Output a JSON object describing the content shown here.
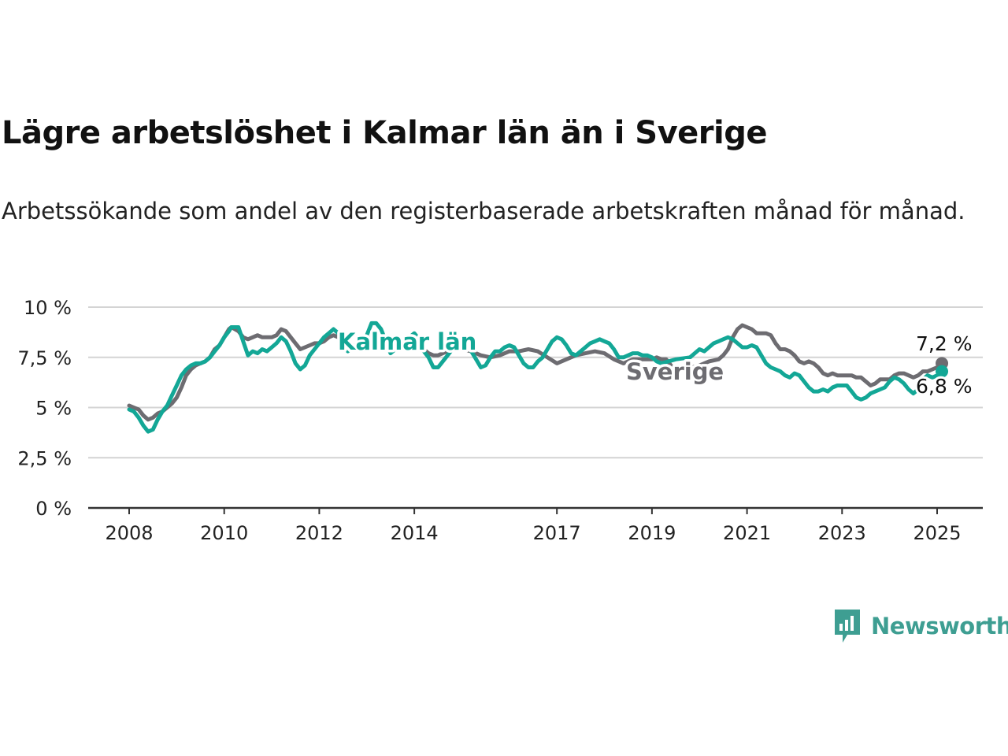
{
  "title": "Lägre arbetslöshet i Kalmar län än i Sverige",
  "subtitle": "Arbetssökande som andel av den registerbaserade arbetskraften månad för månad.",
  "brand": {
    "name": "Newsworthy",
    "icon": "newsworthy-chart-icon",
    "color": "#3e9e92"
  },
  "chart_data": {
    "type": "line",
    "title": "Lägre arbetslöshet i Kalmar län än i Sverige",
    "xlabel": "",
    "ylabel": "",
    "x_ticks": [
      "2008",
      "2010",
      "2012",
      "2014",
      "2017",
      "2019",
      "2021",
      "2023",
      "2025"
    ],
    "x_tick_values": [
      2008,
      2010,
      2012,
      2014,
      2017,
      2019,
      2021,
      2023,
      2025
    ],
    "y_ticks": [
      "0 %",
      "2,5 %",
      "5 %",
      "7,5 %",
      "10 %"
    ],
    "y_tick_values": [
      0,
      2.5,
      5,
      7.5,
      10
    ],
    "xlim": [
      2008,
      2025.1
    ],
    "ylim": [
      0,
      10
    ],
    "grid": "horizontal",
    "series": [
      {
        "name": "Sverige",
        "color": "#6d6c71",
        "end_label": "7,2 %",
        "points": [
          [
            2008.0,
            5.1
          ],
          [
            2008.1,
            5.0
          ],
          [
            2008.2,
            4.9
          ],
          [
            2008.3,
            4.6
          ],
          [
            2008.4,
            4.4
          ],
          [
            2008.5,
            4.5
          ],
          [
            2008.6,
            4.7
          ],
          [
            2008.7,
            4.8
          ],
          [
            2008.8,
            5.0
          ],
          [
            2008.9,
            5.2
          ],
          [
            2009.0,
            5.5
          ],
          [
            2009.1,
            6.0
          ],
          [
            2009.2,
            6.6
          ],
          [
            2009.3,
            6.9
          ],
          [
            2009.4,
            7.1
          ],
          [
            2009.5,
            7.2
          ],
          [
            2009.6,
            7.3
          ],
          [
            2009.7,
            7.5
          ],
          [
            2009.8,
            7.9
          ],
          [
            2009.9,
            8.1
          ],
          [
            2010.0,
            8.5
          ],
          [
            2010.1,
            8.9
          ],
          [
            2010.15,
            9.0
          ],
          [
            2010.3,
            8.8
          ],
          [
            2010.4,
            8.5
          ],
          [
            2010.5,
            8.4
          ],
          [
            2010.6,
            8.5
          ],
          [
            2010.7,
            8.6
          ],
          [
            2010.8,
            8.5
          ],
          [
            2010.9,
            8.5
          ],
          [
            2011.0,
            8.5
          ],
          [
            2011.1,
            8.6
          ],
          [
            2011.2,
            8.9
          ],
          [
            2011.3,
            8.8
          ],
          [
            2011.4,
            8.5
          ],
          [
            2011.5,
            8.2
          ],
          [
            2011.6,
            7.9
          ],
          [
            2011.7,
            8.0
          ],
          [
            2011.8,
            8.1
          ],
          [
            2011.9,
            8.2
          ],
          [
            2012.0,
            8.2
          ],
          [
            2012.1,
            8.3
          ],
          [
            2012.2,
            8.5
          ],
          [
            2012.3,
            8.6
          ],
          [
            2012.4,
            8.5
          ],
          [
            2012.5,
            8.3
          ],
          [
            2012.6,
            8.1
          ],
          [
            2012.7,
            8.0
          ],
          [
            2012.8,
            8.0
          ],
          [
            2012.9,
            8.1
          ],
          [
            2013.0,
            8.3
          ],
          [
            2013.1,
            8.5
          ],
          [
            2013.2,
            8.6
          ],
          [
            2013.3,
            8.5
          ],
          [
            2013.4,
            8.3
          ],
          [
            2013.5,
            8.1
          ],
          [
            2013.6,
            8.0
          ],
          [
            2013.7,
            8.1
          ],
          [
            2013.8,
            8.3
          ],
          [
            2013.9,
            8.5
          ],
          [
            2014.0,
            8.4
          ],
          [
            2014.1,
            8.2
          ],
          [
            2014.2,
            7.9
          ],
          [
            2014.3,
            7.7
          ],
          [
            2014.4,
            7.6
          ],
          [
            2014.5,
            7.6
          ],
          [
            2014.6,
            7.7
          ],
          [
            2014.7,
            7.8
          ],
          [
            2014.8,
            7.9
          ],
          [
            2014.9,
            7.9
          ],
          [
            2015.0,
            7.9
          ],
          [
            2015.2,
            7.8
          ],
          [
            2015.4,
            7.6
          ],
          [
            2015.6,
            7.5
          ],
          [
            2015.8,
            7.6
          ],
          [
            2016.0,
            7.8
          ],
          [
            2016.2,
            7.8
          ],
          [
            2016.4,
            7.9
          ],
          [
            2016.6,
            7.8
          ],
          [
            2016.8,
            7.5
          ],
          [
            2017.0,
            7.2
          ],
          [
            2017.2,
            7.4
          ],
          [
            2017.4,
            7.6
          ],
          [
            2017.6,
            7.7
          ],
          [
            2017.8,
            7.8
          ],
          [
            2018.0,
            7.7
          ],
          [
            2018.2,
            7.4
          ],
          [
            2018.4,
            7.2
          ],
          [
            2018.6,
            7.4
          ],
          [
            2018.8,
            7.4
          ],
          [
            2019.0,
            7.4
          ],
          [
            2019.1,
            7.5
          ],
          [
            2019.2,
            7.4
          ],
          [
            2019.3,
            7.4
          ],
          [
            2019.4,
            7.1
          ],
          [
            2019.5,
            6.8
          ],
          [
            2020.0,
            7.1
          ],
          [
            2020.2,
            7.3
          ],
          [
            2020.4,
            7.4
          ],
          [
            2020.5,
            7.6
          ],
          [
            2020.6,
            7.9
          ],
          [
            2020.7,
            8.5
          ],
          [
            2020.8,
            8.9
          ],
          [
            2020.9,
            9.1
          ],
          [
            2021.0,
            9.0
          ],
          [
            2021.1,
            8.9
          ],
          [
            2021.2,
            8.7
          ],
          [
            2021.3,
            8.7
          ],
          [
            2021.4,
            8.7
          ],
          [
            2021.5,
            8.6
          ],
          [
            2021.6,
            8.2
          ],
          [
            2021.7,
            7.9
          ],
          [
            2021.8,
            7.9
          ],
          [
            2021.9,
            7.8
          ],
          [
            2022.0,
            7.6
          ],
          [
            2022.1,
            7.3
          ],
          [
            2022.2,
            7.2
          ],
          [
            2022.3,
            7.3
          ],
          [
            2022.4,
            7.2
          ],
          [
            2022.5,
            7.0
          ],
          [
            2022.6,
            6.7
          ],
          [
            2022.7,
            6.6
          ],
          [
            2022.8,
            6.7
          ],
          [
            2022.9,
            6.6
          ],
          [
            2023.0,
            6.6
          ],
          [
            2023.2,
            6.6
          ],
          [
            2023.3,
            6.5
          ],
          [
            2023.4,
            6.5
          ],
          [
            2023.5,
            6.3
          ],
          [
            2023.6,
            6.1
          ],
          [
            2023.7,
            6.2
          ],
          [
            2023.8,
            6.4
          ],
          [
            2023.9,
            6.4
          ],
          [
            2024.0,
            6.4
          ],
          [
            2024.1,
            6.6
          ],
          [
            2024.2,
            6.7
          ],
          [
            2024.3,
            6.7
          ],
          [
            2024.4,
            6.6
          ],
          [
            2024.5,
            6.5
          ],
          [
            2024.6,
            6.6
          ],
          [
            2024.7,
            6.8
          ],
          [
            2024.8,
            6.8
          ],
          [
            2024.9,
            6.9
          ],
          [
            2025.0,
            7.0
          ],
          [
            2025.1,
            7.2
          ]
        ]
      },
      {
        "name": "Kalmar län",
        "color": "#13a796",
        "end_label": "6,8 %",
        "points": [
          [
            2008.0,
            4.9
          ],
          [
            2008.1,
            4.8
          ],
          [
            2008.2,
            4.5
          ],
          [
            2008.3,
            4.1
          ],
          [
            2008.4,
            3.8
          ],
          [
            2008.5,
            3.9
          ],
          [
            2008.6,
            4.4
          ],
          [
            2008.7,
            4.8
          ],
          [
            2008.8,
            5.1
          ],
          [
            2008.9,
            5.6
          ],
          [
            2009.0,
            6.1
          ],
          [
            2009.1,
            6.6
          ],
          [
            2009.2,
            6.9
          ],
          [
            2009.3,
            7.1
          ],
          [
            2009.4,
            7.2
          ],
          [
            2009.5,
            7.2
          ],
          [
            2009.6,
            7.3
          ],
          [
            2009.7,
            7.5
          ],
          [
            2009.8,
            7.8
          ],
          [
            2009.9,
            8.1
          ],
          [
            2010.0,
            8.5
          ],
          [
            2010.1,
            8.8
          ],
          [
            2010.15,
            9.0
          ],
          [
            2010.3,
            9.0
          ],
          [
            2010.4,
            8.3
          ],
          [
            2010.5,
            7.6
          ],
          [
            2010.6,
            7.8
          ],
          [
            2010.7,
            7.7
          ],
          [
            2010.8,
            7.9
          ],
          [
            2010.9,
            7.8
          ],
          [
            2011.0,
            8.0
          ],
          [
            2011.1,
            8.2
          ],
          [
            2011.2,
            8.5
          ],
          [
            2011.3,
            8.3
          ],
          [
            2011.4,
            7.8
          ],
          [
            2011.5,
            7.2
          ],
          [
            2011.6,
            6.9
          ],
          [
            2011.7,
            7.1
          ],
          [
            2011.8,
            7.6
          ],
          [
            2011.9,
            7.9
          ],
          [
            2012.0,
            8.2
          ],
          [
            2012.1,
            8.5
          ],
          [
            2012.2,
            8.7
          ],
          [
            2012.3,
            8.9
          ],
          [
            2012.4,
            8.7
          ],
          [
            2012.5,
            8.3
          ],
          [
            2012.6,
            7.8
          ],
          [
            2013.0,
            8.6
          ],
          [
            2013.1,
            9.2
          ],
          [
            2013.2,
            9.2
          ],
          [
            2013.3,
            8.9
          ],
          [
            2013.5,
            7.7
          ],
          [
            2014.0,
            8.7
          ],
          [
            2014.1,
            8.4
          ],
          [
            2014.2,
            7.8
          ],
          [
            2014.3,
            7.5
          ],
          [
            2014.4,
            7.0
          ],
          [
            2014.5,
            7.0
          ],
          [
            2014.6,
            7.3
          ],
          [
            2014.7,
            7.6
          ],
          [
            2014.8,
            7.9
          ],
          [
            2014.9,
            8.1
          ],
          [
            2015.0,
            8.2
          ],
          [
            2015.1,
            8.1
          ],
          [
            2015.2,
            7.8
          ],
          [
            2015.3,
            7.4
          ],
          [
            2015.4,
            7.0
          ],
          [
            2015.5,
            7.1
          ],
          [
            2015.6,
            7.5
          ],
          [
            2015.7,
            7.8
          ],
          [
            2015.8,
            7.8
          ],
          [
            2015.9,
            8.0
          ],
          [
            2016.0,
            8.1
          ],
          [
            2016.1,
            8.0
          ],
          [
            2016.2,
            7.6
          ],
          [
            2016.3,
            7.2
          ],
          [
            2016.4,
            7.0
          ],
          [
            2016.5,
            7.0
          ],
          [
            2016.6,
            7.3
          ],
          [
            2016.7,
            7.5
          ],
          [
            2016.8,
            7.9
          ],
          [
            2016.9,
            8.3
          ],
          [
            2017.0,
            8.5
          ],
          [
            2017.1,
            8.4
          ],
          [
            2017.2,
            8.1
          ],
          [
            2017.3,
            7.7
          ],
          [
            2017.4,
            7.6
          ],
          [
            2017.5,
            7.8
          ],
          [
            2017.6,
            8.0
          ],
          [
            2017.7,
            8.2
          ],
          [
            2017.8,
            8.3
          ],
          [
            2017.9,
            8.4
          ],
          [
            2018.0,
            8.3
          ],
          [
            2018.1,
            8.2
          ],
          [
            2018.2,
            7.9
          ],
          [
            2018.3,
            7.5
          ],
          [
            2018.4,
            7.5
          ],
          [
            2018.5,
            7.6
          ],
          [
            2018.6,
            7.7
          ],
          [
            2018.7,
            7.7
          ],
          [
            2018.8,
            7.6
          ],
          [
            2018.9,
            7.6
          ],
          [
            2019.0,
            7.5
          ],
          [
            2019.1,
            7.3
          ],
          [
            2019.2,
            7.2
          ],
          [
            2019.5,
            7.4
          ],
          [
            2019.8,
            7.5
          ],
          [
            2019.9,
            7.7
          ],
          [
            2020.0,
            7.9
          ],
          [
            2020.1,
            7.8
          ],
          [
            2020.2,
            8.0
          ],
          [
            2020.3,
            8.2
          ],
          [
            2020.4,
            8.3
          ],
          [
            2020.5,
            8.4
          ],
          [
            2020.6,
            8.5
          ],
          [
            2020.7,
            8.4
          ],
          [
            2020.8,
            8.2
          ],
          [
            2020.9,
            8.0
          ],
          [
            2021.0,
            8.0
          ],
          [
            2021.1,
            8.1
          ],
          [
            2021.2,
            8.0
          ],
          [
            2021.3,
            7.6
          ],
          [
            2021.4,
            7.2
          ],
          [
            2021.5,
            7.0
          ],
          [
            2021.6,
            6.9
          ],
          [
            2021.7,
            6.8
          ],
          [
            2021.8,
            6.6
          ],
          [
            2021.9,
            6.5
          ],
          [
            2022.0,
            6.7
          ],
          [
            2022.1,
            6.6
          ],
          [
            2022.2,
            6.3
          ],
          [
            2022.3,
            6.0
          ],
          [
            2022.4,
            5.8
          ],
          [
            2022.5,
            5.8
          ],
          [
            2022.6,
            5.9
          ],
          [
            2022.7,
            5.8
          ],
          [
            2022.8,
            6.0
          ],
          [
            2022.9,
            6.1
          ],
          [
            2023.0,
            6.1
          ],
          [
            2023.1,
            6.1
          ],
          [
            2023.2,
            5.8
          ],
          [
            2023.3,
            5.5
          ],
          [
            2023.4,
            5.4
          ],
          [
            2023.5,
            5.5
          ],
          [
            2023.6,
            5.7
          ],
          [
            2023.7,
            5.8
          ],
          [
            2023.8,
            5.9
          ],
          [
            2023.9,
            6.0
          ],
          [
            2024.0,
            6.3
          ],
          [
            2024.1,
            6.5
          ],
          [
            2024.2,
            6.4
          ],
          [
            2024.3,
            6.2
          ],
          [
            2024.4,
            5.9
          ],
          [
            2024.5,
            5.7
          ],
          [
            2024.6,
            5.9
          ],
          [
            2024.7,
            6.4
          ],
          [
            2024.8,
            6.6
          ],
          [
            2024.9,
            6.5
          ],
          [
            2025.0,
            6.6
          ],
          [
            2025.1,
            6.8
          ]
        ]
      }
    ]
  }
}
